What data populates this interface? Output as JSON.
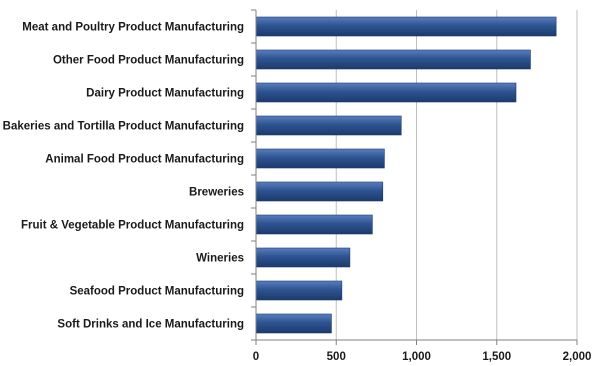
{
  "chart_data": {
    "type": "bar",
    "orientation": "horizontal",
    "categories": [
      "Meat and Poultry Product Manufacturing",
      "Other Food Product Manufacturing",
      "Dairy Product Manufacturing",
      "Bakeries and Tortilla Product Manufacturing",
      "Animal Food Product Manufacturing",
      "Breweries",
      "Fruit & Vegetable Product Manufacturing",
      "Wineries",
      "Seafood Product Manufacturing",
      "Soft Drinks and Ice Manufacturing"
    ],
    "values": [
      1870,
      1710,
      1620,
      905,
      800,
      790,
      725,
      585,
      535,
      470
    ],
    "xlim": [
      0,
      2000
    ],
    "xticks": [
      0,
      500,
      1000,
      1500,
      2000
    ],
    "xtick_labels": [
      "0",
      "500",
      "1,000",
      "1,500",
      "2,000"
    ],
    "grid": "vertical",
    "legend": "none",
    "colors": {
      "bar": "#2e5491",
      "bar_light": "#5a7fbf",
      "bar_dark": "#1c3a6e",
      "grid": "#bfbfbf",
      "axis": "#808080"
    }
  }
}
